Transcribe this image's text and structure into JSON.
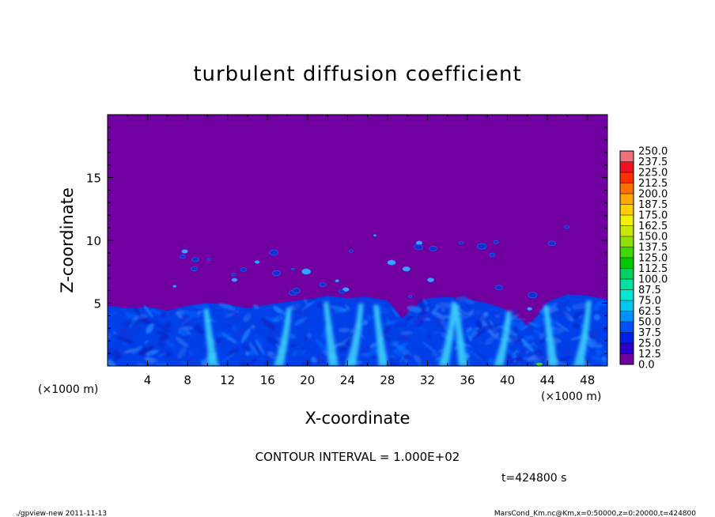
{
  "chart_data": {
    "type": "heatmap",
    "title": "turbulent diffusion coefficient",
    "xlabel": "X-coordinate",
    "ylabel": "Z-coordinate",
    "x_units": "(×1000 m)",
    "y_units": "(×1000 m)",
    "xlim": [
      0,
      50
    ],
    "ylim": [
      0,
      20
    ],
    "x_ticks": [
      "4",
      "8",
      "12",
      "16",
      "20",
      "24",
      "28",
      "32",
      "36",
      "40",
      "44",
      "48"
    ],
    "y_ticks": [
      "5",
      "10",
      "15"
    ],
    "colorbar": {
      "levels": [
        "0.0",
        "12.5",
        "25.0",
        "37.5",
        "50.0",
        "62.5",
        "75.0",
        "87.5",
        "100.0",
        "112.5",
        "125.0",
        "137.5",
        "150.0",
        "162.5",
        "175.0",
        "187.5",
        "200.0",
        "212.5",
        "225.0",
        "237.5",
        "250.0"
      ],
      "colors": [
        "#7000a0",
        "#2a00c8",
        "#0020e8",
        "#0050ff",
        "#0090ff",
        "#00c8f0",
        "#00e8d0",
        "#00e0a0",
        "#00d060",
        "#00c800",
        "#40d800",
        "#90e000",
        "#c8e800",
        "#f0f000",
        "#ffd000",
        "#ffa800",
        "#ff7000",
        "#ff3000",
        "#f01020",
        "#f07080"
      ]
    },
    "contour_interval": "CONTOUR INTERVAL = 1.000E+02",
    "time_label": "t=424800 s",
    "boundary_layer_top": [
      [
        0,
        4.8
      ],
      [
        2,
        4.6
      ],
      [
        4,
        4.7
      ],
      [
        6,
        4.4
      ],
      [
        8,
        4.8
      ],
      [
        10,
        5.0
      ],
      [
        12,
        4.9
      ],
      [
        14,
        4.6
      ],
      [
        16,
        4.9
      ],
      [
        18,
        5.1
      ],
      [
        20,
        5.3
      ],
      [
        22,
        5.6
      ],
      [
        24,
        5.4
      ],
      [
        26,
        5.5
      ],
      [
        28,
        5.2
      ],
      [
        29.5,
        3.8
      ],
      [
        30.5,
        4.6
      ],
      [
        32,
        5.4
      ],
      [
        34,
        5.5
      ],
      [
        36,
        5.3
      ],
      [
        38,
        5.0
      ],
      [
        39.5,
        4.6
      ],
      [
        41,
        3.9
      ],
      [
        42,
        3.2
      ],
      [
        43,
        4.0
      ],
      [
        44,
        5.1
      ],
      [
        46,
        5.7
      ],
      [
        48,
        5.6
      ],
      [
        50,
        5.3
      ]
    ],
    "updrafts_x": [
      10.5,
      17,
      22.5,
      24.2,
      27.5,
      33.5,
      35.5,
      39,
      44.5,
      47
    ]
  },
  "footer": {
    "left": "./gpview-new   2011-11-13",
    "right": "MarsCond_Km.nc@Km,x=0:50000,z=0:20000,t=424800"
  }
}
